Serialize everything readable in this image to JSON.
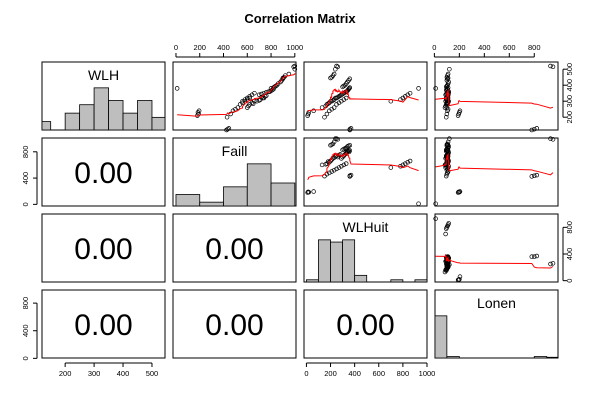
{
  "chart_data": {
    "type": "scatter-matrix",
    "title": "Correlation Matrix",
    "variables": [
      "WLH",
      "Faill",
      "WLHuit",
      "Lonen"
    ],
    "correlations_lower": [
      {
        "row": 1,
        "col": 0,
        "text": "0.00"
      },
      {
        "row": 2,
        "col": 0,
        "text": "0.00"
      },
      {
        "row": 2,
        "col": 1,
        "text": "0.00"
      },
      {
        "row": 3,
        "col": 0,
        "text": "0.00"
      },
      {
        "row": 3,
        "col": 1,
        "text": "0.00"
      },
      {
        "row": 3,
        "col": 2,
        "text": "0.00"
      }
    ],
    "axis_ticks": {
      "WLH": [
        200,
        300,
        400,
        500
      ],
      "Faill": [
        0,
        200,
        400,
        600,
        800,
        1000
      ],
      "WLHuit": [
        0,
        200,
        400,
        600,
        800,
        1000
      ],
      "Lonen": [
        0,
        200,
        400,
        600,
        800
      ]
    },
    "left_axis": [
      {
        "row": 1,
        "ticks": [
          0,
          400,
          800
        ]
      },
      {
        "row": 3,
        "ticks": [
          0,
          400,
          800
        ]
      }
    ],
    "right_axis": [
      {
        "row": 0,
        "ticks": [
          200,
          300,
          400,
          500
        ]
      },
      {
        "row": 2,
        "ticks": [
          0,
          400,
          800
        ]
      }
    ],
    "top_axis": [
      {
        "col": 1,
        "ticks": [
          0,
          200,
          400,
          600,
          800,
          1000
        ]
      },
      {
        "col": 3,
        "ticks": [
          0,
          200,
          400,
          600,
          800
        ]
      }
    ],
    "bottom_axis": [
      {
        "col": 0,
        "ticks": [
          200,
          300,
          400,
          500
        ]
      },
      {
        "col": 2,
        "ticks": [
          0,
          200,
          400,
          600,
          800,
          1000
        ]
      }
    ],
    "histograms": {
      "WLH": {
        "breaks": [
          100,
          150,
          200,
          250,
          300,
          350,
          400,
          450,
          500,
          550
        ],
        "counts": [
          2,
          0,
          4,
          6,
          10,
          7,
          4,
          7,
          3
        ]
      },
      "Faill": {
        "breaks": [
          0,
          200,
          400,
          600,
          800,
          1000
        ],
        "counts": [
          3,
          1,
          5,
          11,
          6
        ]
      },
      "WLHuit": {
        "breaks": [
          0,
          100,
          200,
          300,
          400,
          500,
          600,
          700,
          800,
          900,
          1000
        ],
        "counts": [
          1,
          19,
          18,
          19,
          3,
          0,
          0,
          1,
          0,
          1
        ]
      },
      "Lonen": {
        "breaks": [
          0,
          100,
          200,
          300,
          400,
          500,
          600,
          700,
          800,
          900,
          1000
        ],
        "counts": [
          58,
          2,
          0,
          0,
          0,
          0,
          0,
          0,
          2,
          1
        ]
      }
    },
    "ranges": {
      "WLH": [
        120,
        545
      ],
      "Faill": [
        -25,
        1010
      ],
      "WLHuit": [
        -20,
        1000
      ],
      "Lonen": [
        5,
        990
      ]
    },
    "series": {
      "WLH": [
        380,
        210,
        220,
        230,
        240,
        120,
        125,
        130,
        260,
        270,
        280,
        285,
        290,
        300,
        300,
        305,
        310,
        320,
        320,
        325,
        330,
        335,
        340,
        345,
        350,
        355,
        360,
        360,
        365,
        370,
        375,
        380,
        385,
        390,
        395,
        400,
        410,
        420,
        430,
        440,
        445,
        450,
        460,
        470,
        500,
        520,
        515,
        300,
        310,
        320,
        330,
        340,
        350,
        200,
        220,
        240,
        250,
        260,
        280,
        290,
        300,
        310,
        320
      ],
      "Faill": [
        10,
        180,
        190,
        185,
        195,
        425,
        435,
        445,
        600,
        610,
        620,
        650,
        640,
        660,
        680,
        700,
        710,
        730,
        740,
        720,
        750,
        760,
        700,
        720,
        740,
        760,
        780,
        790,
        800,
        810,
        820,
        800,
        820,
        830,
        840,
        850,
        860,
        880,
        890,
        900,
        900,
        910,
        920,
        950,
        1000,
        1000,
        990,
        560,
        580,
        600,
        620,
        640,
        660,
        430,
        460,
        480,
        500,
        520,
        540,
        560,
        580,
        600,
        620
      ],
      "WLHuit": [
        930,
        10,
        15,
        20,
        60,
        360,
        360,
        370,
        130,
        160,
        170,
        180,
        190,
        200,
        210,
        220,
        230,
        240,
        250,
        260,
        270,
        280,
        290,
        300,
        310,
        320,
        330,
        335,
        340,
        345,
        350,
        355,
        360,
        300,
        310,
        320,
        330,
        340,
        350,
        360,
        200,
        210,
        220,
        230,
        240,
        250,
        260,
        700,
        780,
        800,
        820,
        840,
        860,
        150,
        170,
        190,
        210,
        230,
        250,
        270,
        290,
        310,
        330
      ],
      "Lonen": [
        10,
        190,
        195,
        200,
        205,
        780,
        800,
        820,
        85,
        90,
        95,
        100,
        100,
        105,
        110,
        100,
        105,
        110,
        95,
        100,
        105,
        110,
        90,
        95,
        100,
        105,
        110,
        115,
        100,
        95,
        105,
        100,
        110,
        95,
        100,
        105,
        110,
        115,
        100,
        105,
        110,
        100,
        105,
        110,
        120,
        930,
        950,
        90,
        95,
        100,
        105,
        110,
        115,
        95,
        100,
        105,
        110,
        100,
        105,
        110,
        115,
        100,
        105
      ]
    },
    "grid": false,
    "legend": "none"
  },
  "colors": {
    "smooth": "#ff0000",
    "bar_fill": "#bebebe",
    "axis": "#000000"
  }
}
